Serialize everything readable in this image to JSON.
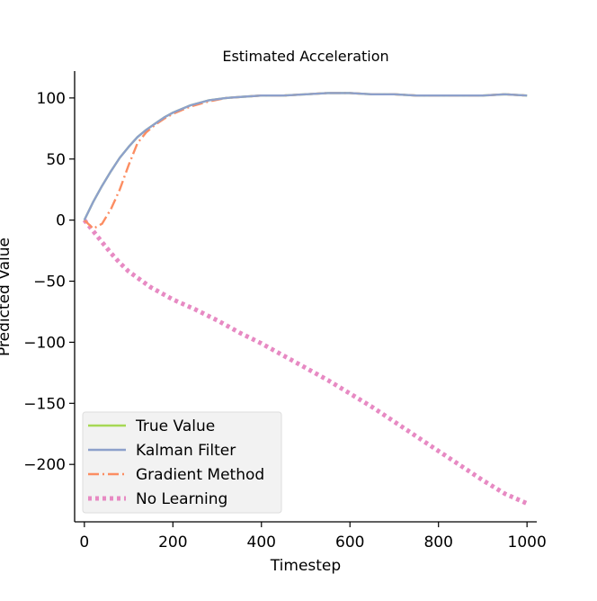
{
  "chart_data": {
    "type": "line",
    "title": "Estimated Acceleration",
    "xlabel": "Timestep",
    "ylabel": "Predicted Value",
    "xlim": [
      -22,
      1022
    ],
    "ylim": [
      -247,
      122
    ],
    "xticks": [
      {
        "value": 0,
        "label": "0"
      },
      {
        "value": 200,
        "label": "200"
      },
      {
        "value": 400,
        "label": "400"
      },
      {
        "value": 600,
        "label": "600"
      },
      {
        "value": 800,
        "label": "800"
      },
      {
        "value": 1000,
        "label": "1000"
      }
    ],
    "yticks": [
      {
        "value": 100,
        "label": "100"
      },
      {
        "value": 50,
        "label": "50"
      },
      {
        "value": 0,
        "label": "0"
      },
      {
        "value": -50,
        "label": "−50"
      },
      {
        "value": -100,
        "label": "−100"
      },
      {
        "value": -150,
        "label": "−150"
      },
      {
        "value": -200,
        "label": "−200"
      }
    ],
    "grid": false,
    "legend_position": "lower-left",
    "series": [
      {
        "name": "True Value",
        "color": "#a6d854",
        "style": "solid",
        "x": [
          0,
          20,
          40,
          60,
          80,
          100,
          120,
          140,
          160,
          180,
          200,
          240,
          280,
          320,
          360,
          400,
          450,
          500,
          550,
          600,
          650,
          700,
          750,
          800,
          850,
          900,
          950,
          1000
        ],
        "y": [
          0,
          15,
          28,
          40,
          51,
          60,
          68,
          74,
          79,
          84,
          88,
          94,
          98,
          100,
          101,
          102,
          102,
          103,
          104,
          104,
          103,
          103,
          102,
          102,
          102,
          102,
          103,
          102
        ]
      },
      {
        "name": "Kalman Filter",
        "color": "#8da0cb",
        "style": "solid",
        "x": [
          0,
          20,
          40,
          60,
          80,
          100,
          120,
          140,
          160,
          180,
          200,
          240,
          280,
          320,
          360,
          400,
          450,
          500,
          550,
          600,
          650,
          700,
          750,
          800,
          850,
          900,
          950,
          1000
        ],
        "y": [
          0,
          15,
          28,
          40,
          51,
          60,
          68,
          74,
          79,
          84,
          88,
          94,
          98,
          100,
          101,
          102,
          102,
          103,
          104,
          104,
          103,
          103,
          102,
          102,
          102,
          102,
          103,
          102
        ]
      },
      {
        "name": "Gradient Method",
        "color": "#fc8d62",
        "style": "dashdot",
        "x": [
          0,
          20,
          40,
          60,
          80,
          100,
          120,
          140,
          160,
          180,
          200,
          240,
          280,
          320,
          360,
          400,
          450,
          500,
          550,
          600,
          650,
          700,
          750,
          800,
          850,
          900,
          950,
          1000
        ],
        "y": [
          0,
          -7,
          -3,
          9,
          25,
          45,
          63,
          72,
          78,
          83,
          87,
          93,
          97,
          100,
          101,
          102,
          102,
          103,
          104,
          104,
          103,
          103,
          102,
          102,
          102,
          102,
          103,
          102
        ]
      },
      {
        "name": "No Learning",
        "color": "#e78ac3",
        "style": "dotted",
        "x": [
          0,
          20,
          40,
          60,
          80,
          100,
          150,
          200,
          250,
          300,
          350,
          400,
          450,
          500,
          550,
          600,
          650,
          700,
          750,
          800,
          850,
          900,
          950,
          1000
        ],
        "y": [
          0,
          -9,
          -18,
          -27,
          -35,
          -42,
          -55,
          -65,
          -73,
          -82,
          -92,
          -101,
          -111,
          -121,
          -131,
          -142,
          -153,
          -165,
          -177,
          -189,
          -201,
          -213,
          -224,
          -232
        ]
      }
    ]
  }
}
